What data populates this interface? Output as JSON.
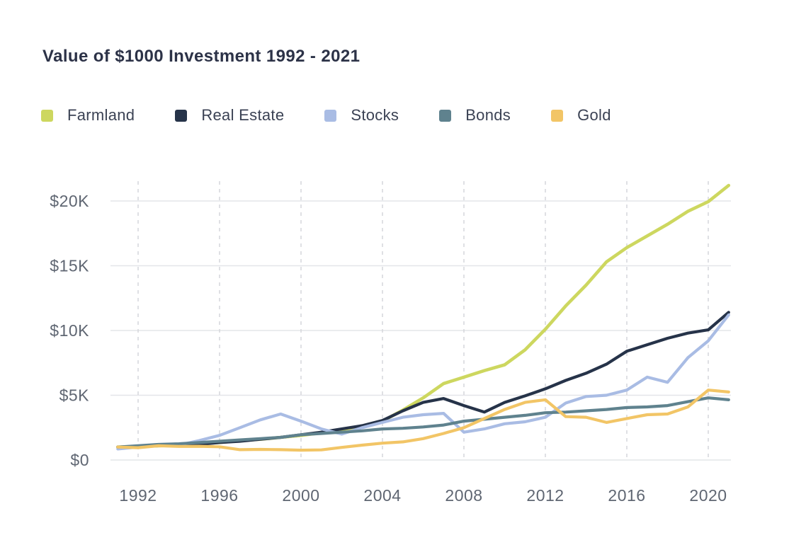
{
  "title": "Value of $1000 Investment 1992 - 2021",
  "legend": [
    {
      "label": "Farmland",
      "color": "#cdd75f"
    },
    {
      "label": "Real Estate",
      "color": "#263349"
    },
    {
      "label": "Stocks",
      "color": "#a9bce4"
    },
    {
      "label": "Bonds",
      "color": "#5f828e"
    },
    {
      "label": "Gold",
      "color": "#f2c566"
    }
  ],
  "colors": {
    "title_text": "#2c3247",
    "axis_text": "#5f6672",
    "solid_gridline": "#e4e5e9",
    "dashed_gridline": "#d7d8dd",
    "background": "#ffffff"
  },
  "chart_data": {
    "type": "line",
    "title": "Value of $1000 Investment 1992 - 2021",
    "xlabel": "",
    "ylabel": "",
    "x": [
      1991,
      1992,
      1993,
      1994,
      1995,
      1996,
      1997,
      1998,
      1999,
      2000,
      2001,
      2002,
      2003,
      2004,
      2005,
      2006,
      2007,
      2008,
      2009,
      2010,
      2011,
      2012,
      2013,
      2014,
      2015,
      2016,
      2017,
      2018,
      2019,
      2020,
      2021
    ],
    "x_tick_labels": [
      "1992",
      "1996",
      "2000",
      "2004",
      "2008",
      "2012",
      "2016",
      "2020"
    ],
    "y_tick_labels": [
      "$0",
      "$5K",
      "$10K",
      "$15K",
      "$20K"
    ],
    "y_tick_values": [
      0,
      5000,
      10000,
      15000,
      20000
    ],
    "ylim": [
      0,
      21500
    ],
    "xlim": [
      1991,
      2021
    ],
    "grid": {
      "horizontal": "solid",
      "vertical": "dashed"
    },
    "legend_position": "top-left",
    "series": [
      {
        "name": "Farmland",
        "color": "#cdd75f",
        "values": [
          1000,
          1050,
          1100,
          1150,
          1250,
          1350,
          1500,
          1600,
          1750,
          1900,
          2100,
          2350,
          2600,
          3000,
          3850,
          4800,
          5900,
          6400,
          6900,
          7350,
          8500,
          10100,
          11900,
          13500,
          15300,
          16400,
          17300,
          18200,
          19200,
          19950,
          21200
        ]
      },
      {
        "name": "Real Estate",
        "color": "#263349",
        "values": [
          1000,
          1050,
          1100,
          1150,
          1200,
          1350,
          1450,
          1600,
          1750,
          1950,
          2150,
          2400,
          2650,
          3050,
          3800,
          4450,
          4750,
          4200,
          3700,
          4450,
          4950,
          5500,
          6150,
          6700,
          7400,
          8400,
          8900,
          9400,
          9800,
          10050,
          11400
        ]
      },
      {
        "name": "Stocks",
        "color": "#a9bce4",
        "values": [
          850,
          1000,
          1100,
          1150,
          1500,
          1900,
          2500,
          3100,
          3550,
          3000,
          2400,
          2000,
          2500,
          2900,
          3300,
          3500,
          3600,
          2150,
          2400,
          2800,
          2950,
          3300,
          4400,
          4900,
          5000,
          5400,
          6400,
          6000,
          7900,
          9200,
          11200
        ]
      },
      {
        "name": "Bonds",
        "color": "#5f828e",
        "values": [
          1000,
          1100,
          1200,
          1250,
          1350,
          1450,
          1550,
          1650,
          1750,
          1950,
          2050,
          2150,
          2250,
          2400,
          2450,
          2550,
          2700,
          3000,
          3150,
          3300,
          3450,
          3650,
          3700,
          3800,
          3900,
          4050,
          4100,
          4200,
          4500,
          4800,
          4650
        ]
      },
      {
        "name": "Gold",
        "color": "#f2c566",
        "values": [
          1000,
          950,
          1100,
          1050,
          1060,
          1020,
          800,
          820,
          800,
          760,
          780,
          970,
          1150,
          1300,
          1400,
          1650,
          2050,
          2500,
          3200,
          3900,
          4450,
          4650,
          3350,
          3300,
          2900,
          3200,
          3500,
          3550,
          4100,
          5400,
          5250
        ]
      }
    ]
  }
}
